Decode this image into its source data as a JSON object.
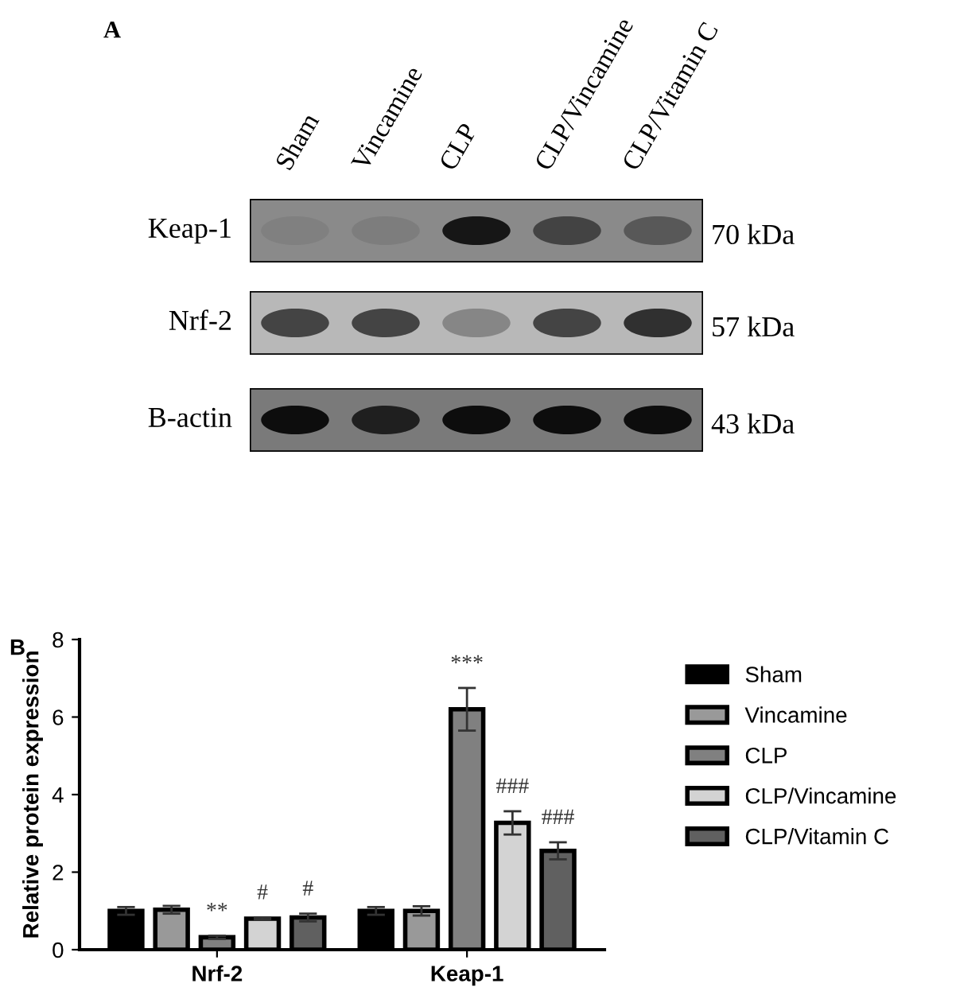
{
  "chart_data": {
    "type": "bar",
    "ylabel": "Relative protein expression",
    "categories": [
      "Nrf-2",
      "Keap-1"
    ],
    "series": [
      {
        "name": "Sham",
        "color": "#000000",
        "values": [
          1.0,
          1.0
        ],
        "errors": [
          0.1,
          0.1
        ]
      },
      {
        "name": "Vincamine",
        "color": "#999999",
        "values": [
          1.03,
          1.0
        ],
        "errors": [
          0.1,
          0.12
        ]
      },
      {
        "name": "CLP",
        "color": "#808080",
        "values": [
          0.32,
          6.2
        ],
        "errors": [
          0.04,
          0.55
        ]
      },
      {
        "name": "CLP/Vincamine",
        "color": "#d3d3d3",
        "values": [
          0.8,
          3.27
        ],
        "errors": [
          0.03,
          0.3
        ]
      },
      {
        "name": "CLP/Vitamin C",
        "color": "#606060",
        "values": [
          0.83,
          2.55
        ],
        "errors": [
          0.1,
          0.22
        ]
      }
    ],
    "ylim": [
      0,
      8
    ],
    "yticks": [
      0,
      2,
      4,
      6,
      8
    ],
    "grid": false,
    "legend": "right",
    "annotations": [
      "A",
      "B",
      "Sham",
      "Vincamine",
      "CLP",
      "CLP/Vincamine",
      "CLP/Vitamin C",
      "Keap-1",
      "Nrf-2",
      "B-actin",
      "70 kDa",
      "57 kDa",
      "43 kDa",
      "**",
      "#",
      "#",
      "***",
      "###",
      "###"
    ]
  }
}
